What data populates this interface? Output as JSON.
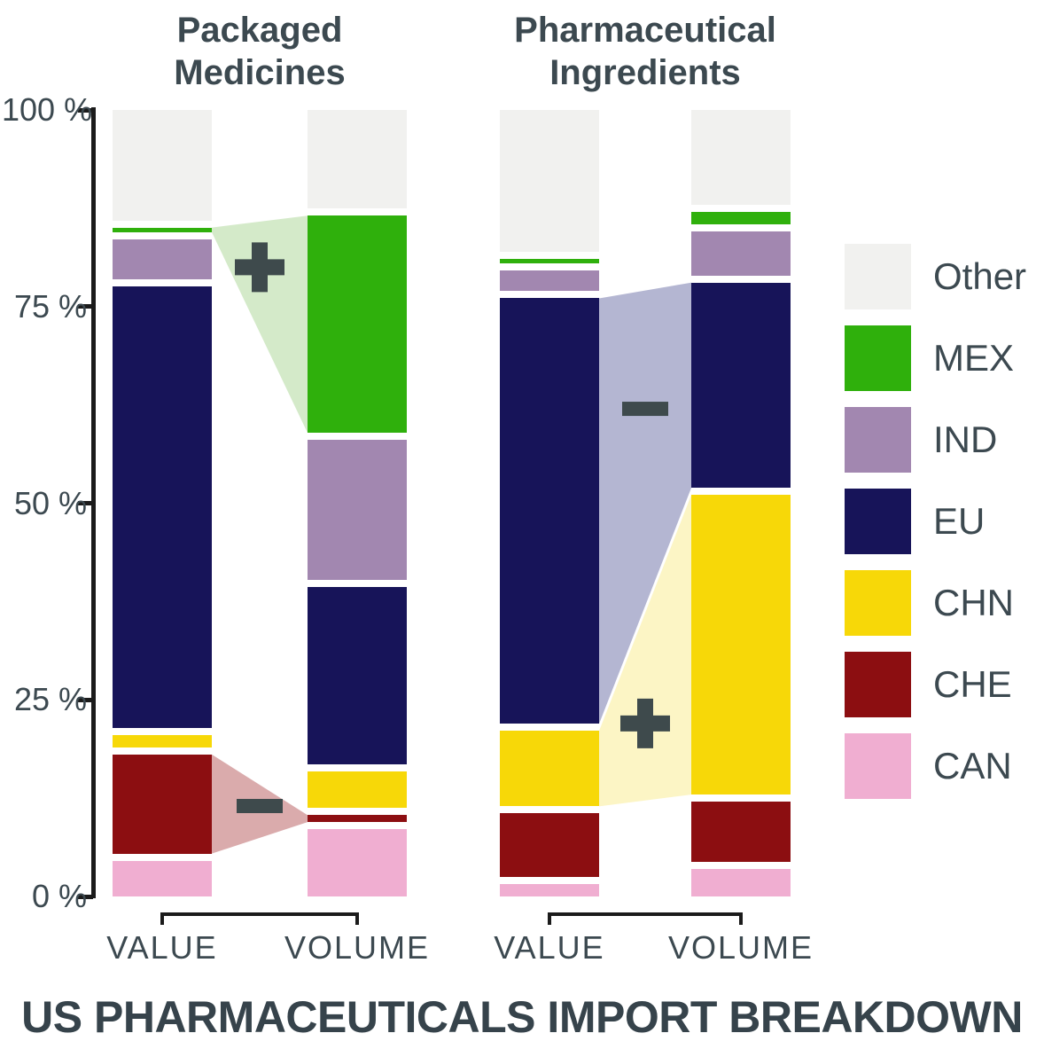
{
  "title": "US PHARMACEUTICALS IMPORT BREAKDOWN",
  "text_color": "#3C4950",
  "axis_color": "#1b1b1b",
  "sign_color": "#3E4A4C",
  "chart_data": {
    "type": "bar",
    "stacked": true,
    "title": "US PHARMACEUTICALS IMPORT BREAKDOWN",
    "ylabel": "",
    "ylim": [
      0,
      100
    ],
    "grid": false,
    "legend_position": "right",
    "yticks": [
      {
        "pct": 100,
        "label": "100 %"
      },
      {
        "pct": 75,
        "label": "75 %"
      },
      {
        "pct": 50,
        "label": "50 %"
      },
      {
        "pct": 25,
        "label": "25 %"
      },
      {
        "pct": 0,
        "label": "0 %"
      }
    ],
    "stack_order_bottom_to_top": [
      "CAN",
      "CHE",
      "CHN",
      "EU",
      "IND",
      "MEX",
      "Other"
    ],
    "colors": {
      "Other": "#F1F1EF",
      "MEX": "#2FB00C",
      "IND": "#A287B0",
      "EU": "#171459",
      "CHN": "#F7D808",
      "CHE": "#8C0E11",
      "CAN": "#F0AED1"
    },
    "flow_colors": {
      "MEX": "#D4EAC9",
      "CHE": "#DAABAC",
      "EU": "#B4B6D2",
      "CHN": "#FCF5C5"
    },
    "legend": [
      {
        "label": "Other",
        "color": "#F1F1EF"
      },
      {
        "label": "MEX",
        "color": "#2FB00C"
      },
      {
        "label": "IND",
        "color": "#A287B0"
      },
      {
        "label": "EU",
        "color": "#171459"
      },
      {
        "label": "CHN",
        "color": "#F7D808"
      },
      {
        "label": "CHE",
        "color": "#8C0E11"
      },
      {
        "label": "CAN",
        "color": "#F0AED1"
      }
    ],
    "groups": [
      {
        "label_lines": [
          "Packaged",
          "Medicines"
        ],
        "bars": [
          {
            "label": "VALUE",
            "values": {
              "CAN": 5,
              "CHE": 13.5,
              "CHN": 2.5,
              "EU": 57,
              "IND": 6,
              "MEX": 1.5,
              "Other": 14.5
            }
          },
          {
            "label": "VOLUME",
            "values": {
              "CAN": 9,
              "CHE": 1.8,
              "CHN": 5.5,
              "EU": 23.5,
              "IND": 18.7,
              "MEX": 28.5,
              "Other": 13
            }
          }
        ],
        "flows": [
          {
            "category": "MEX",
            "sign": "plus",
            "sign_y_pct": 80
          },
          {
            "category": "CHE",
            "sign": "minus",
            "sign_y_pct": 11.5
          }
        ]
      },
      {
        "label_lines": [
          "Pharmaceutical",
          "Ingredients"
        ],
        "bars": [
          {
            "label": "VALUE",
            "values": {
              "CAN": 2,
              "CHE": 9,
              "CHN": 10.5,
              "EU": 55,
              "IND": 3.5,
              "MEX": 1.5,
              "Other": 18.5
            }
          },
          {
            "label": "VOLUME",
            "values": {
              "CAN": 4,
              "CHE": 8.5,
              "CHN": 39,
              "EU": 27,
              "IND": 6.5,
              "MEX": 2.5,
              "Other": 12.5
            }
          }
        ],
        "flows": [
          {
            "category": "EU",
            "sign": "minus",
            "sign_y_pct": 62
          },
          {
            "category": "CHN",
            "sign": "plus",
            "sign_y_pct": 22
          }
        ]
      }
    ]
  }
}
